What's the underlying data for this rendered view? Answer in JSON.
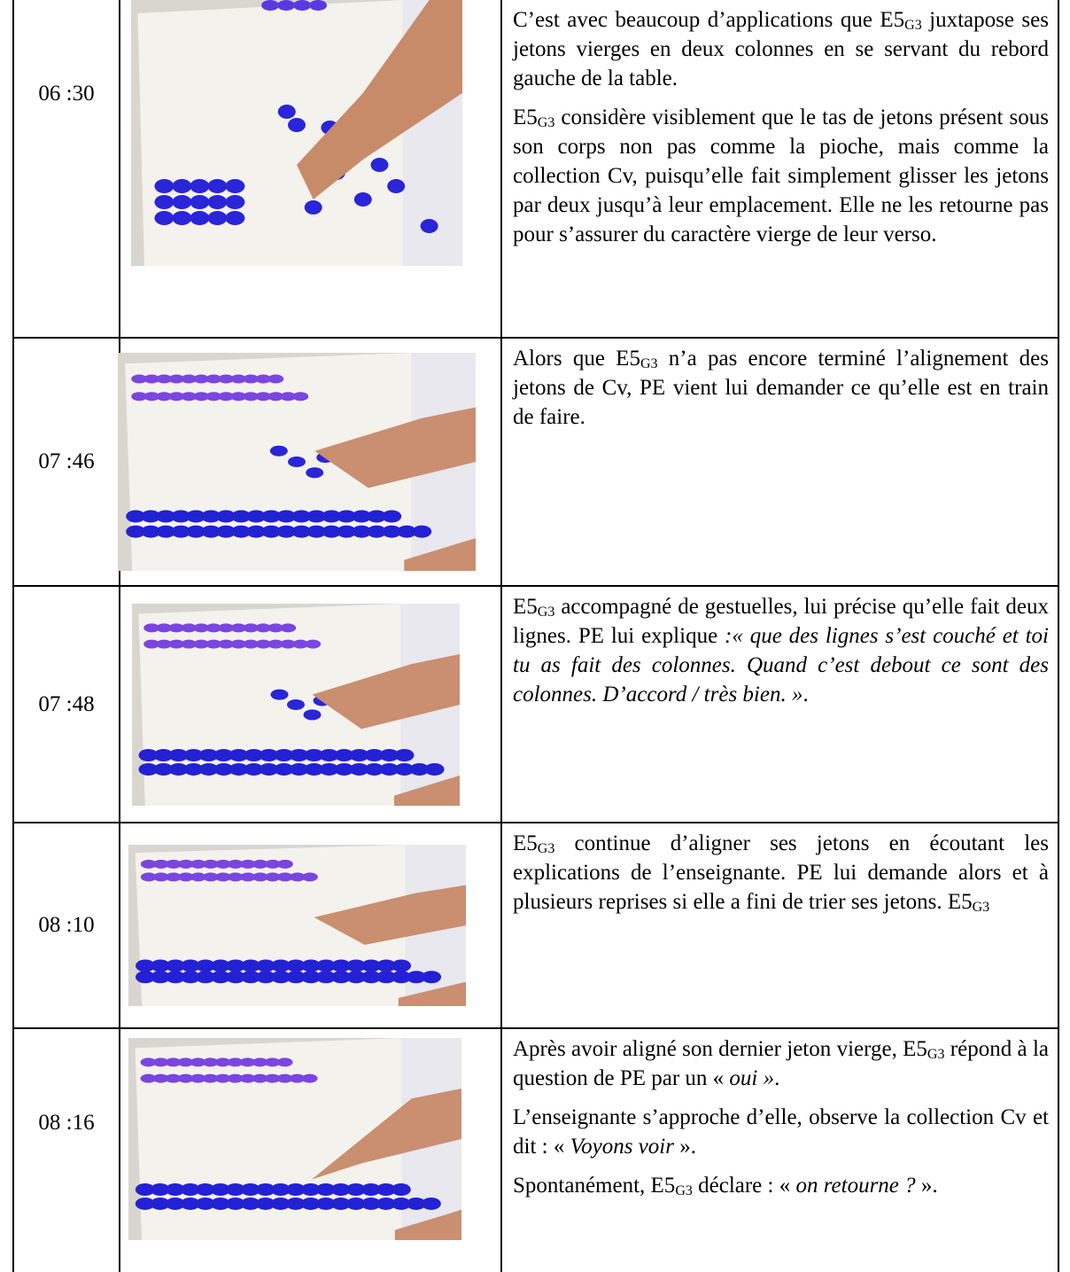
{
  "rows": [
    {
      "time": "06 :30",
      "paragraphs": [
        [
          "C’est avec beaucoup d’applications que E5",
          "G3",
          " juxtapose ses jetons vierges en deux colonnes en se servant du rebord gauche de la table."
        ],
        [
          "E5",
          "G3",
          " considère visiblement que le tas de jetons présent sous son corps non pas comme la pioche, mais comme la collection Cv, puisqu’elle fait simplement glisser les jetons par deux jusqu’à leur emplacement. Elle ne les retourne pas pour s’assurer du caractère vierge de leur verso."
        ]
      ]
    },
    {
      "time": "07 :46",
      "paragraphs": [
        [
          "Alors que E5",
          "G3",
          " n’a pas encore terminé l’alignement des jetons de Cv, PE vient lui demander ce qu’elle est en train de faire."
        ]
      ]
    },
    {
      "time": "07 :48",
      "paragraphs": [
        [
          "E5",
          "G3",
          " accompagné de gestuelles, lui précise qu’elle fait deux lignes. PE lui explique ",
          ":« que des lignes s’est couché et toi tu as fait des colonnes. Quand c’est debout ce sont des colonnes. D’accord / très bien. »",
          "."
        ]
      ]
    },
    {
      "time": "08 :10",
      "paragraphs": [
        [
          "E5",
          "G3",
          " continue d’aligner ses jetons en écoutant les explications de l’enseignante. PE lui demande alors et à plusieurs reprises si elle a fini de trier ses jetons. E5",
          "G3"
        ]
      ]
    },
    {
      "time": "08 :16",
      "paragraphs": [
        [
          "Après avoir aligné son dernier jeton vierge, E5",
          "G3",
          " répond à la question de PE par un « ",
          "oui »",
          "."
        ],
        [
          "L’enseignante s’approche d’elle, observe la collection Cv et dit : « ",
          "Voyons voir",
          " »."
        ],
        [
          "Spontanément, E5",
          "G3",
          " déclare : « ",
          "on retourne ?",
          " »."
        ]
      ]
    }
  ]
}
